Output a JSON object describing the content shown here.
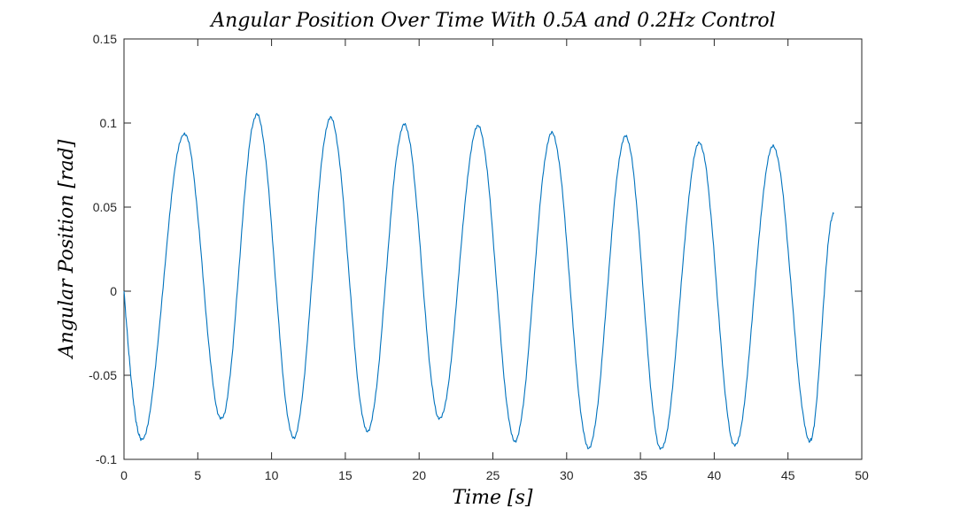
{
  "chart_data": {
    "type": "line",
    "title": "Angular Position Over Time With 0.5A and 0.2Hz Control",
    "xlabel": "Time [s]",
    "ylabel": "Angular Position [rad]",
    "xlim": [
      0,
      50
    ],
    "ylim": [
      -0.1,
      0.15
    ],
    "xticks": [
      0,
      5,
      10,
      15,
      20,
      25,
      30,
      35,
      40,
      45,
      50
    ],
    "xtick_labels": [
      "0",
      "5",
      "10",
      "15",
      "20",
      "25",
      "30",
      "35",
      "40",
      "45",
      "50"
    ],
    "yticks": [
      -0.1,
      -0.05,
      0,
      0.05,
      0.1,
      0.15
    ],
    "ytick_labels": [
      "-0.1",
      "-0.05",
      "0",
      "0.05",
      "0.1",
      "0.15"
    ],
    "grid": false,
    "color": "#0072BD",
    "series": [
      {
        "extrema": [
          [
            0.0,
            0.0
          ],
          [
            1.2,
            -0.088
          ],
          [
            4.1,
            0.094
          ],
          [
            6.6,
            -0.076
          ],
          [
            9.0,
            0.105
          ],
          [
            11.5,
            -0.087
          ],
          [
            14.0,
            0.103
          ],
          [
            16.5,
            -0.083
          ],
          [
            19.0,
            0.099
          ],
          [
            21.4,
            -0.076
          ],
          [
            24.0,
            0.098
          ],
          [
            26.5,
            -0.089
          ],
          [
            29.0,
            0.094
          ],
          [
            31.5,
            -0.093
          ],
          [
            34.0,
            0.092
          ],
          [
            36.4,
            -0.094
          ],
          [
            39.0,
            0.088
          ],
          [
            41.4,
            -0.092
          ],
          [
            44.0,
            0.086
          ],
          [
            46.5,
            -0.089
          ],
          [
            48.1,
            0.046
          ]
        ]
      }
    ]
  }
}
